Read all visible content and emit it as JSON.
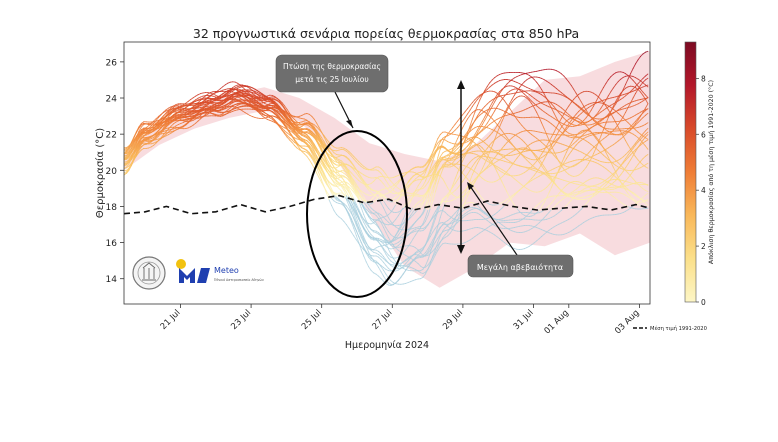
{
  "chart_data": {
    "type": "line",
    "title": "32 προγνωστικά σενάρια πορείας θερμοκρασίας στα 850 hPa",
    "xlabel": "Ημερομηνία 2024",
    "ylabel": "Θερμοκρασία (°C)",
    "ylim": [
      12.6,
      27.1
    ],
    "yticks": [
      14,
      16,
      18,
      20,
      22,
      24,
      26
    ],
    "xlim": [
      -0.6,
      14.3
    ],
    "xticks": [
      {
        "x": 1,
        "label": "21 Jul"
      },
      {
        "x": 3,
        "label": "23 Jul"
      },
      {
        "x": 5,
        "label": "25 Jul"
      },
      {
        "x": 7,
        "label": "27 Jul"
      },
      {
        "x": 9,
        "label": "29 Jul"
      },
      {
        "x": 11,
        "label": "31 Jul"
      },
      {
        "x": 12,
        "label": "01 Aug"
      },
      {
        "x": 14,
        "label": "03 Aug"
      }
    ],
    "ensemble_members": 32,
    "ensemble_mean_key_points": [
      {
        "x": -0.6,
        "y": 20.5
      },
      {
        "x": 0.0,
        "y": 22.0
      },
      {
        "x": 1.0,
        "y": 23.0
      },
      {
        "x": 2.0,
        "y": 23.7
      },
      {
        "x": 2.6,
        "y": 24.1
      },
      {
        "x": 3.5,
        "y": 23.5
      },
      {
        "x": 4.5,
        "y": 22.0
      },
      {
        "x": 5.5,
        "y": 19.5
      },
      {
        "x": 6.5,
        "y": 17.0
      },
      {
        "x": 7.0,
        "y": 16.3
      },
      {
        "x": 7.8,
        "y": 17.3
      },
      {
        "x": 8.5,
        "y": 19.3
      },
      {
        "x": 9.5,
        "y": 20.5
      },
      {
        "x": 11.0,
        "y": 20.8
      },
      {
        "x": 12.5,
        "y": 21.2
      },
      {
        "x": 14.3,
        "y": 21.5
      }
    ],
    "spread_envelope": {
      "upper": [
        20.9,
        22.5,
        23.5,
        24.2,
        24.6,
        24.0,
        22.9,
        21.5,
        20.9,
        20.5,
        21.4,
        23.2,
        25.0,
        25.2,
        26.0,
        26.6
      ],
      "lower": [
        20.0,
        21.4,
        22.3,
        22.9,
        23.3,
        22.7,
        20.8,
        17.6,
        14.7,
        13.5,
        14.6,
        16.0,
        15.8,
        16.5,
        15.3,
        16.0
      ]
    },
    "climatology": {
      "name": "Μέση τιμή 1991-2020",
      "x": [
        -0.6,
        0.0,
        0.6,
        1.3,
        2.0,
        2.7,
        3.4,
        4.1,
        4.8,
        5.5,
        6.2,
        6.9,
        7.6,
        8.3,
        9.0,
        9.7,
        10.4,
        11.1,
        11.8,
        12.5,
        13.2,
        13.9,
        14.3
      ],
      "y": [
        17.6,
        17.7,
        18.0,
        17.6,
        17.7,
        18.1,
        17.7,
        18.0,
        18.4,
        18.6,
        18.2,
        18.4,
        17.8,
        18.1,
        17.9,
        18.3,
        18.0,
        17.8,
        17.9,
        18.0,
        17.8,
        18.1,
        17.9
      ]
    },
    "colorbar": {
      "label": "Απόκλιση θερμοκρασίας από τη μέση τιμή 1991-2020 (°C)",
      "ticks": [
        0,
        2,
        4,
        6,
        8
      ],
      "range": [
        0,
        9.3
      ],
      "colors": [
        "#fdf6c6",
        "#fbe08a",
        "#f9b85a",
        "#ef7d36",
        "#d84a2a",
        "#b3172a",
        "#7c0a22"
      ]
    },
    "annotations": [
      {
        "text_lines": [
          "Πτώση της θερμοκρασίας",
          "μετά τις 25 Ιουλίου"
        ]
      },
      {
        "text_lines": [
          "Μεγάλη αβεβαιότητα"
        ]
      }
    ],
    "legend": {
      "placement": "bottom-right",
      "entries": [
        "Μέση τιμή 1991-2020"
      ]
    },
    "grid": false
  },
  "logos": {
    "meteo_brand": "Meteo",
    "meteo_tagline": "Έθνικό Αστεροσκοπείο Αθηνών"
  },
  "colors": {
    "spread_fill": "#f6d3d7",
    "cool_members": "#a9cfde",
    "annotation_box": "#6e6e6e",
    "meteo_blue": "#1f3fb0",
    "meteo_yellow": "#f2c20f"
  }
}
